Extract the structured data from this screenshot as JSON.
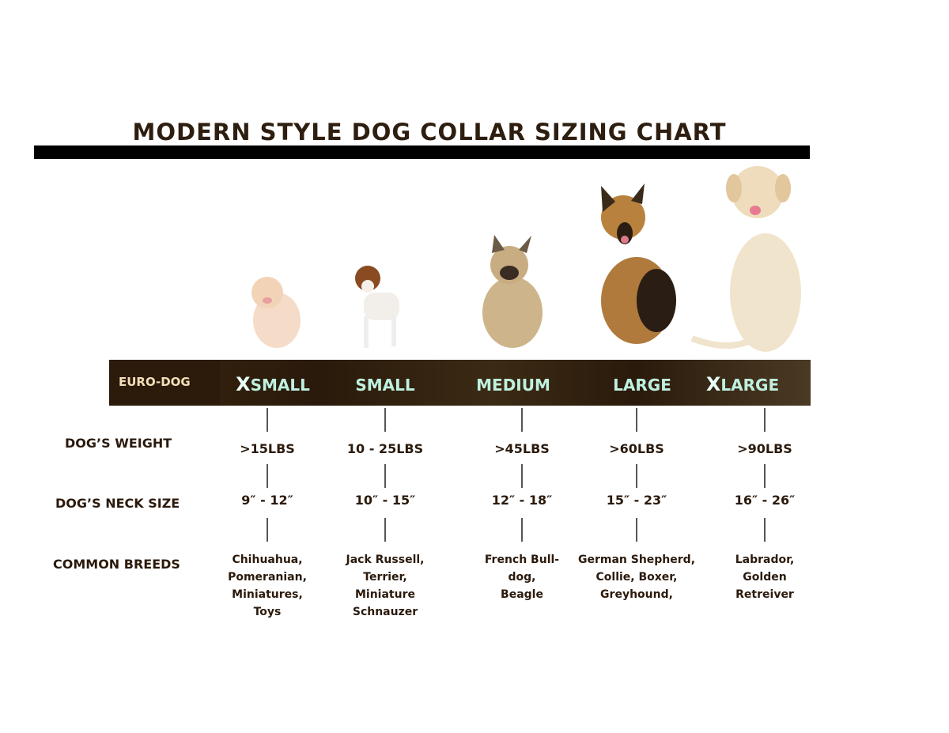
{
  "title": "MODERN STYLE DOG COLLAR SIZING CHART",
  "banner": {
    "brand": "EURO-DOG",
    "accent_color": "#bff0e0",
    "background_color": "#2c1a0a"
  },
  "row_labels": {
    "weight": "DOG’S WEIGHT",
    "neck": "DOG’S NECK SIZE",
    "breeds": "COMMON BREEDS"
  },
  "sizes": [
    {
      "prefix": "X",
      "label": "SMALL",
      "weight": ">15LBS",
      "neck": "9″ - 12″",
      "breeds": [
        "Chihuahua,",
        "Pomeranian,",
        "Miniatures,",
        "Toys"
      ],
      "dog": "pomeranian"
    },
    {
      "prefix": "",
      "label": "SMALL",
      "weight": "10 - 25LBS",
      "neck": "10″ - 15″",
      "breeds": [
        "Jack Russell,",
        "Terrier,",
        "Miniature",
        "Schnauzer"
      ],
      "dog": "jack-russell"
    },
    {
      "prefix": "",
      "label": "MEDIUM",
      "weight": ">45LBS",
      "neck": "12″ - 18″",
      "breeds": [
        "French Bull-",
        "dog,",
        "Beagle"
      ],
      "dog": "french-bulldog"
    },
    {
      "prefix": "",
      "label": "LARGE",
      "weight": ">60LBS",
      "neck": "15″ - 23″",
      "breeds": [
        "German Shepherd,",
        "Collie, Boxer,",
        "Greyhound,"
      ],
      "dog": "german-shepherd"
    },
    {
      "prefix": "X",
      "label": "LARGE",
      "weight": ">90LBS",
      "neck": "16″ - 26″",
      "breeds": [
        "Labrador,",
        "Golden",
        "Retreiver"
      ],
      "dog": "labrador"
    }
  ]
}
